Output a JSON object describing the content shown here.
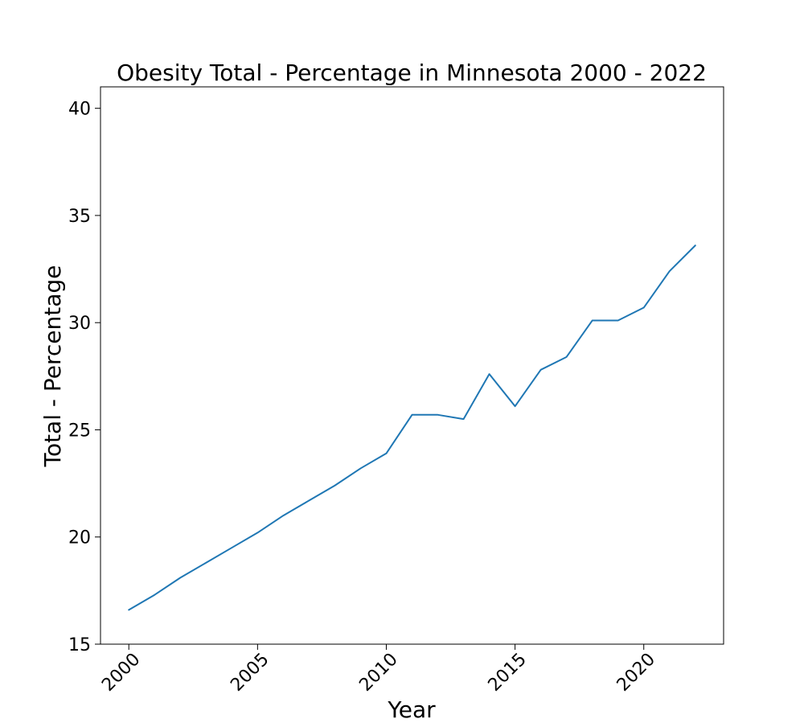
{
  "chart_data": {
    "type": "line",
    "title": "Obesity Total - Percentage in Minnesota 2000 - 2022",
    "xlabel": "Year",
    "ylabel": "Total - Percentage",
    "x": [
      2000,
      2001,
      2002,
      2003,
      2004,
      2005,
      2006,
      2007,
      2008,
      2009,
      2010,
      2011,
      2012,
      2013,
      2014,
      2015,
      2016,
      2017,
      2018,
      2019,
      2020,
      2021,
      2022
    ],
    "series": [
      {
        "values": [
          16.6,
          17.3,
          18.1,
          18.8,
          19.5,
          20.2,
          21.0,
          21.7,
          22.4,
          23.2,
          23.9,
          25.7,
          25.7,
          25.5,
          27.6,
          26.1,
          27.8,
          28.4,
          30.1,
          30.1,
          30.7,
          32.4,
          33.6
        ],
        "color": "#1f77b4"
      }
    ],
    "xlim": [
      1998.9,
      2023.1
    ],
    "ylim": [
      15,
      41
    ],
    "xticks": [
      2000,
      2005,
      2010,
      2015,
      2020
    ],
    "yticks": [
      15,
      20,
      25,
      30,
      35,
      40
    ],
    "xtick_labels": [
      "2000",
      "2005",
      "2010",
      "2015",
      "2020"
    ],
    "ytick_labels": [
      "15",
      "20",
      "25",
      "30",
      "35",
      "40"
    ],
    "grid": false,
    "legend": false
  }
}
